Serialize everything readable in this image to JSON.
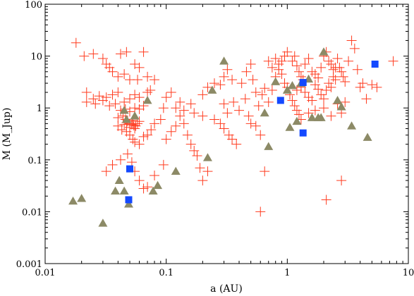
{
  "chart_data": {
    "type": "scatter",
    "title": "",
    "xlabel": "a (AU)",
    "ylabel": "M (M_Jup)",
    "xscale": "log",
    "yscale": "log",
    "xlim": [
      0.01,
      10
    ],
    "ylim": [
      0.001,
      100
    ],
    "grid": false,
    "legend": "none",
    "x_ticks": [
      {
        "value": 0.01,
        "label": "0.01"
      },
      {
        "value": 0.1,
        "label": "0.1"
      },
      {
        "value": 1,
        "label": "1"
      },
      {
        "value": 10,
        "label": "10"
      }
    ],
    "y_ticks": [
      {
        "value": 0.001,
        "label": "0.001"
      },
      {
        "value": 0.01,
        "label": "0.01"
      },
      {
        "value": 0.1,
        "label": "0.1"
      },
      {
        "value": 1,
        "label": "1"
      },
      {
        "value": 10,
        "label": "10"
      },
      {
        "value": 100,
        "label": "100"
      }
    ],
    "series": [
      {
        "marker": "plus",
        "color": "#ff3b1f",
        "points": [
          [
            0.018,
            18
          ],
          [
            0.021,
            10
          ],
          [
            0.025,
            11
          ],
          [
            0.03,
            9
          ],
          [
            0.034,
            6
          ],
          [
            0.042,
            11
          ],
          [
            0.047,
            12
          ],
          [
            0.055,
            7
          ],
          [
            0.06,
            6
          ],
          [
            0.065,
            12
          ],
          [
            0.032,
            7
          ],
          [
            0.036,
            5
          ],
          [
            0.04,
            4
          ],
          [
            0.045,
            4.5
          ],
          [
            0.05,
            3.5
          ],
          [
            0.058,
            3.5
          ],
          [
            0.07,
            4
          ],
          [
            0.08,
            3.5
          ],
          [
            0.022,
            2
          ],
          [
            0.025,
            1.5
          ],
          [
            0.028,
            1.7
          ],
          [
            0.032,
            1.6
          ],
          [
            0.036,
            1.8
          ],
          [
            0.04,
            2
          ],
          [
            0.045,
            1.3
          ],
          [
            0.05,
            1.5
          ],
          [
            0.055,
            1.8
          ],
          [
            0.06,
            1.6
          ],
          [
            0.07,
            2
          ],
          [
            0.074,
            2.2
          ],
          [
            0.022,
            1.3
          ],
          [
            0.026,
            1.2
          ],
          [
            0.03,
            1.4
          ],
          [
            0.034,
            1.1
          ],
          [
            0.038,
            1.2
          ],
          [
            0.042,
            0.9
          ],
          [
            0.046,
            0.95
          ],
          [
            0.05,
            0.85
          ],
          [
            0.055,
            1
          ],
          [
            0.06,
            0.95
          ],
          [
            0.065,
            1.1
          ],
          [
            0.04,
            0.65
          ],
          [
            0.044,
            0.7
          ],
          [
            0.046,
            0.6
          ],
          [
            0.048,
            0.55
          ],
          [
            0.05,
            0.5
          ],
          [
            0.052,
            0.48
          ],
          [
            0.054,
            0.46
          ],
          [
            0.056,
            0.45
          ],
          [
            0.058,
            0.5
          ],
          [
            0.06,
            0.55
          ],
          [
            0.045,
            0.48
          ],
          [
            0.05,
            0.42
          ],
          [
            0.055,
            0.4
          ],
          [
            0.047,
            0.52
          ],
          [
            0.053,
            0.58
          ],
          [
            0.04,
            0.45
          ],
          [
            0.043,
            0.38
          ],
          [
            0.047,
            0.35
          ],
          [
            0.05,
            0.3
          ],
          [
            0.053,
            0.25
          ],
          [
            0.055,
            0.22
          ],
          [
            0.06,
            0.2
          ],
          [
            0.065,
            0.28
          ],
          [
            0.07,
            0.3
          ],
          [
            0.075,
            0.38
          ],
          [
            0.08,
            0.5
          ],
          [
            0.09,
            0.6
          ],
          [
            0.095,
            1
          ],
          [
            0.032,
            0.06
          ],
          [
            0.036,
            0.08
          ],
          [
            0.042,
            0.1
          ],
          [
            0.048,
            0.13
          ],
          [
            0.052,
            0.09
          ],
          [
            0.055,
            0.06
          ],
          [
            0.06,
            0.04
          ],
          [
            0.065,
            0.028
          ],
          [
            0.07,
            0.03
          ],
          [
            0.08,
            0.05
          ],
          [
            0.095,
            0.08
          ],
          [
            0.1,
            0.25
          ],
          [
            0.11,
            0.35
          ],
          [
            0.12,
            0.45
          ],
          [
            0.13,
            0.7
          ],
          [
            0.14,
            0.5
          ],
          [
            0.15,
            0.3
          ],
          [
            0.16,
            0.2
          ],
          [
            0.17,
            0.15
          ],
          [
            0.18,
            0.12
          ],
          [
            0.19,
            0.07
          ],
          [
            0.2,
            0.04
          ],
          [
            0.22,
            0.06
          ],
          [
            0.1,
            1.6
          ],
          [
            0.11,
            2
          ],
          [
            0.13,
            1.3
          ],
          [
            0.16,
            1.2
          ],
          [
            0.2,
            1.8
          ],
          [
            0.22,
            2.5
          ],
          [
            0.25,
            3
          ],
          [
            0.28,
            2.8
          ],
          [
            0.3,
            4
          ],
          [
            0.32,
            5.5
          ],
          [
            0.35,
            3.5
          ],
          [
            0.12,
            1
          ],
          [
            0.14,
            0.9
          ],
          [
            0.17,
            0.8
          ],
          [
            0.2,
            0.7
          ],
          [
            0.25,
            0.6
          ],
          [
            0.28,
            0.5
          ],
          [
            0.3,
            0.4
          ],
          [
            0.33,
            0.3
          ],
          [
            0.35,
            0.25
          ],
          [
            0.38,
            0.2
          ],
          [
            0.3,
            1.2
          ],
          [
            0.32,
            0.8
          ],
          [
            0.36,
            1.3
          ],
          [
            0.4,
            0.9
          ],
          [
            0.45,
            1.5
          ],
          [
            0.48,
            0.7
          ],
          [
            0.5,
            0.5
          ],
          [
            0.55,
            0.45
          ],
          [
            0.6,
            0.3
          ],
          [
            0.65,
            0.06
          ],
          [
            0.6,
            0.01
          ],
          [
            0.42,
            3
          ],
          [
            0.46,
            5
          ],
          [
            0.5,
            7
          ],
          [
            0.52,
            3.5
          ],
          [
            0.55,
            2
          ],
          [
            0.58,
            1.1
          ],
          [
            0.62,
            1.8
          ],
          [
            0.65,
            2.4
          ],
          [
            0.7,
            1.3
          ],
          [
            0.75,
            2.2
          ],
          [
            0.8,
            4
          ],
          [
            0.85,
            5.5
          ],
          [
            0.9,
            8
          ],
          [
            0.95,
            10
          ],
          [
            1.0,
            12
          ],
          [
            0.7,
            8
          ],
          [
            0.75,
            6
          ],
          [
            0.8,
            9
          ],
          [
            0.85,
            7
          ],
          [
            0.9,
            4.5
          ],
          [
            0.95,
            3
          ],
          [
            1.0,
            2.5
          ],
          [
            1.05,
            1.8
          ],
          [
            1.1,
            1.4
          ],
          [
            1.15,
            1.1
          ],
          [
            1.2,
            0.9
          ],
          [
            1.25,
            0.75
          ],
          [
            1.3,
            0.6
          ],
          [
            1.1,
            8
          ],
          [
            1.15,
            10
          ],
          [
            1.2,
            6.5
          ],
          [
            1.25,
            5
          ],
          [
            1.3,
            4
          ],
          [
            1.35,
            3.5
          ],
          [
            1.4,
            7
          ],
          [
            1.5,
            9
          ],
          [
            1.6,
            5
          ],
          [
            1.7,
            4.5
          ],
          [
            1.8,
            3.8
          ],
          [
            1.9,
            6
          ],
          [
            2.0,
            10
          ],
          [
            2.1,
            12
          ],
          [
            2.2,
            8
          ],
          [
            2.3,
            7
          ],
          [
            2.4,
            5.5
          ],
          [
            2.5,
            6
          ],
          [
            1.2,
            2.2
          ],
          [
            1.3,
            2.5
          ],
          [
            1.4,
            2
          ],
          [
            1.5,
            1.6
          ],
          [
            1.6,
            1.4
          ],
          [
            1.7,
            2.8
          ],
          [
            1.8,
            2.3
          ],
          [
            1.9,
            1.8
          ],
          [
            2.0,
            1.5
          ],
          [
            2.1,
            2.2
          ],
          [
            2.2,
            3
          ],
          [
            2.3,
            2.5
          ],
          [
            2.4,
            4
          ],
          [
            2.5,
            3.5
          ],
          [
            2.6,
            9
          ],
          [
            2.7,
            6
          ],
          [
            2.8,
            5
          ],
          [
            2.9,
            4
          ],
          [
            3.0,
            3.2
          ],
          [
            3.2,
            8
          ],
          [
            3.4,
            20
          ],
          [
            3.6,
            14
          ],
          [
            3.8,
            5.5
          ],
          [
            4.0,
            2.5
          ],
          [
            4.2,
            3
          ],
          [
            4.5,
            1.5
          ],
          [
            5.0,
            2.8
          ],
          [
            5.5,
            2.5
          ],
          [
            7.5,
            8
          ],
          [
            1.5,
            0.8
          ],
          [
            1.7,
            0.9
          ],
          [
            2.0,
            1
          ],
          [
            2.3,
            0.7
          ],
          [
            2.6,
            1.2
          ],
          [
            2.8,
            0.8
          ],
          [
            3.0,
            1.3
          ],
          [
            2.8,
            0.04
          ],
          [
            2.1,
            0.017
          ]
        ]
      },
      {
        "marker": "triangle",
        "color": "#8c8a66",
        "points": [
          [
            0.017,
            0.016
          ],
          [
            0.02,
            0.018
          ],
          [
            0.03,
            0.006
          ],
          [
            0.038,
            0.025
          ],
          [
            0.041,
            0.04
          ],
          [
            0.045,
            0.025
          ],
          [
            0.049,
            0.014
          ],
          [
            0.045,
            0.9
          ],
          [
            0.047,
            0.6
          ],
          [
            0.055,
            0.7
          ],
          [
            0.07,
            1.4
          ],
          [
            0.078,
            0.025
          ],
          [
            0.085,
            0.032
          ],
          [
            0.12,
            0.06
          ],
          [
            0.22,
            0.11
          ],
          [
            0.24,
            2.2
          ],
          [
            0.3,
            8
          ],
          [
            0.65,
            0.8
          ],
          [
            0.7,
            0.18
          ],
          [
            0.8,
            3.2
          ],
          [
            1.0,
            2.2
          ],
          [
            1.05,
            0.42
          ],
          [
            1.1,
            2.7
          ],
          [
            1.2,
            0.55
          ],
          [
            1.3,
            3
          ],
          [
            1.5,
            3.6
          ],
          [
            1.6,
            0.65
          ],
          [
            1.8,
            0.65
          ],
          [
            1.9,
            0.65
          ],
          [
            2.0,
            12
          ],
          [
            2.6,
            1.4
          ],
          [
            2.8,
            1.05
          ],
          [
            3.4,
            0.45
          ],
          [
            4.6,
            0.27
          ]
        ]
      },
      {
        "marker": "square",
        "color": "#1449ff",
        "points": [
          [
            0.05,
            0.067
          ],
          [
            0.049,
            0.017
          ],
          [
            0.88,
            1.4
          ],
          [
            1.35,
            3.1
          ],
          [
            1.35,
            0.33
          ],
          [
            5.3,
            7
          ]
        ]
      }
    ]
  }
}
